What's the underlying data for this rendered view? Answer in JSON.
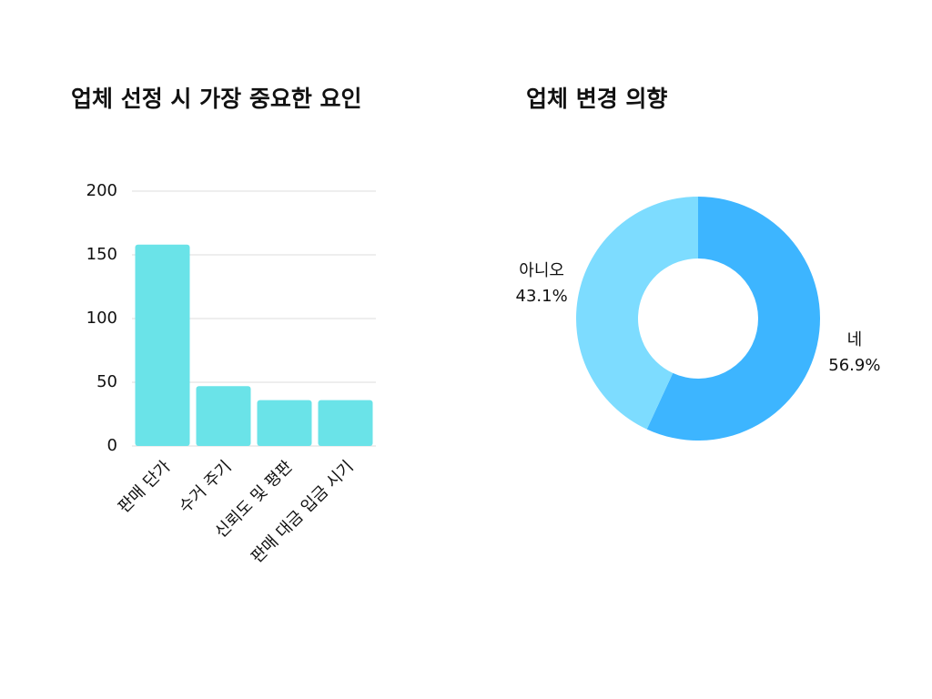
{
  "chart_data": [
    {
      "type": "bar",
      "title": "업체 선정 시 가장 중요한 요인",
      "categories": [
        "판매 단가",
        "수거 주기",
        "신뢰도 및 평판",
        "판매 대금 입금 시기"
      ],
      "values": [
        158,
        47,
        36,
        36
      ],
      "color": "#6ae3e8",
      "ylim": [
        0,
        200
      ],
      "yticks": [
        0,
        50,
        100,
        150,
        200
      ],
      "grid": true
    },
    {
      "type": "donut",
      "title": "업체 변경 의향",
      "categories": [
        "네",
        "아니오"
      ],
      "values": [
        56.9,
        43.1
      ],
      "value_labels": [
        "56.9%",
        "43.1%"
      ],
      "colors": [
        "#3db5ff",
        "#7ddcff"
      ]
    }
  ]
}
